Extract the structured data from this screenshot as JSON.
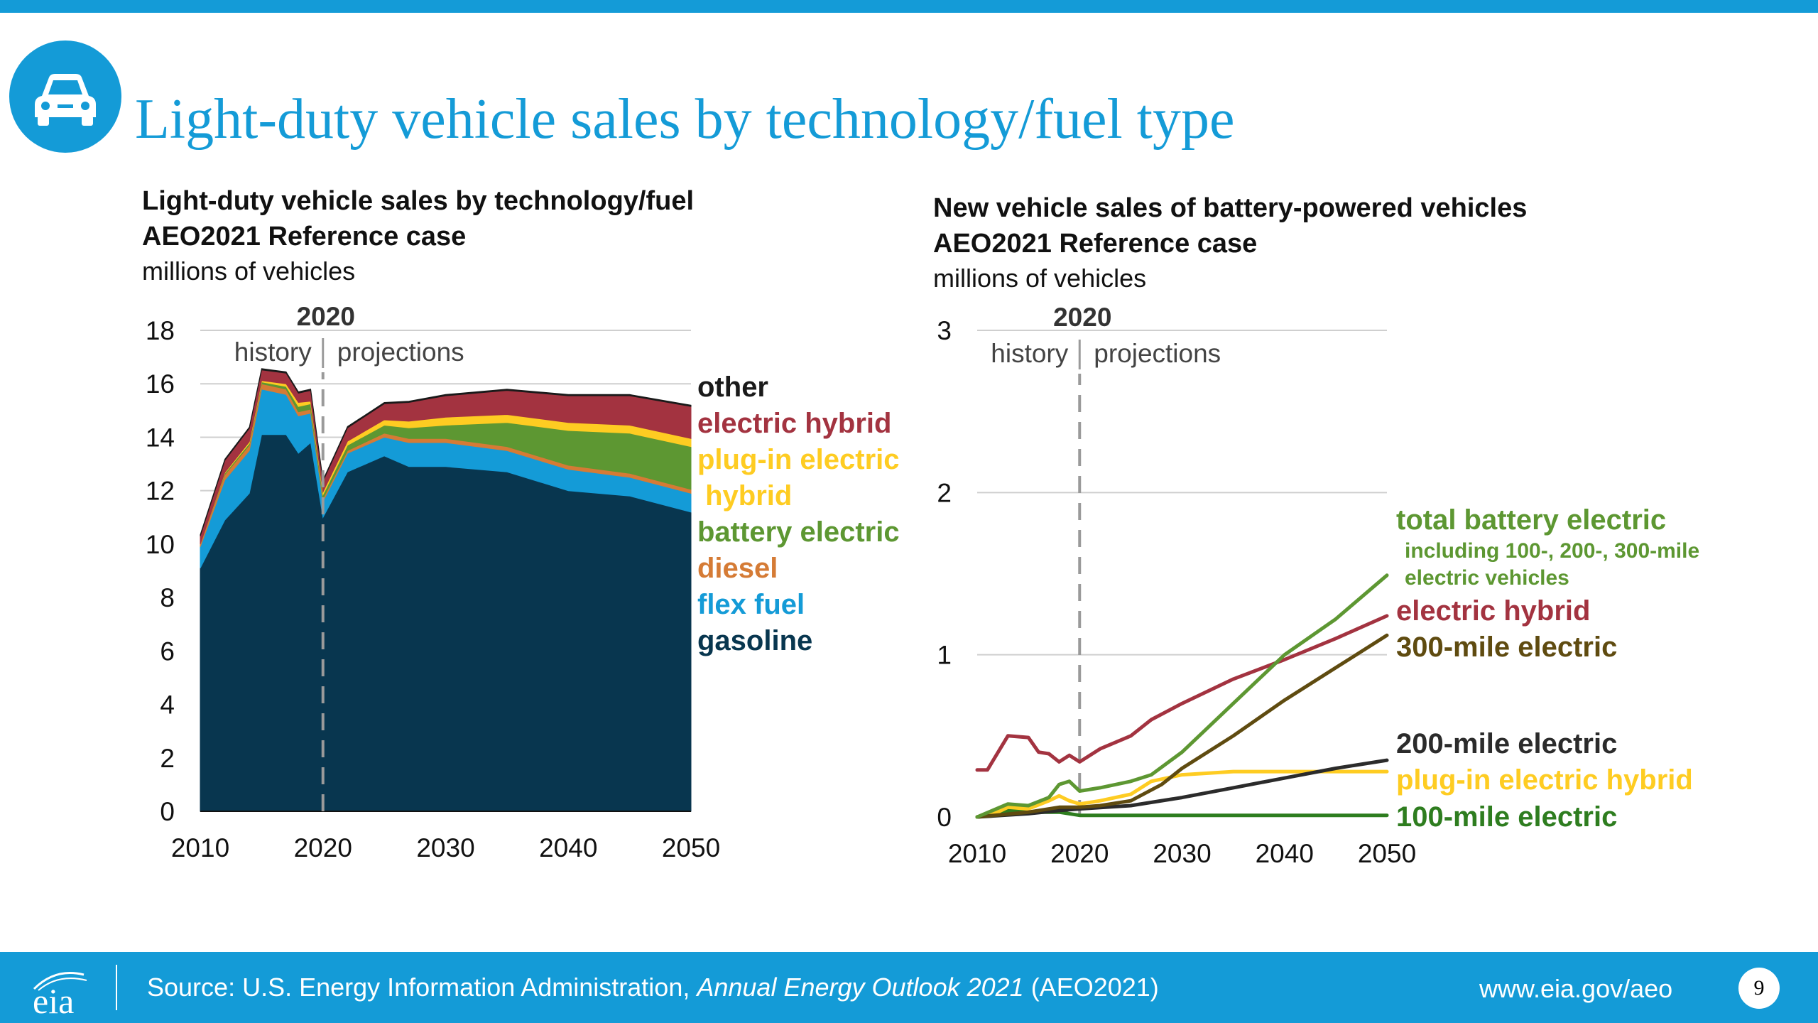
{
  "page": {
    "title": "Light-duty vehicle sales by technology/fuel type",
    "icon": "car-icon",
    "accent_color": "#149bd7"
  },
  "footer": {
    "source_prefix": "Source: U.S. Energy Information Administration, ",
    "source_italic": "Annual Energy Outlook 2021",
    "source_suffix": " (AEO2021)",
    "url": "www.eia.gov/aeo",
    "page_number": "9",
    "logo_text": "eia"
  },
  "chart_data": [
    {
      "id": "left",
      "type": "area",
      "stacked": true,
      "title": "Light-duty vehicle sales by technology/fuel",
      "subtitle": "AEO2021 Reference case",
      "ylabel": "millions of vehicles",
      "xlim": [
        2010,
        2050
      ],
      "ylim": [
        0,
        18
      ],
      "yticks": [
        0,
        2,
        4,
        6,
        8,
        10,
        12,
        14,
        16,
        18
      ],
      "xticks": [
        2010,
        2020,
        2030,
        2040,
        2050
      ],
      "grid": true,
      "divider": {
        "year": 2020,
        "label": "2020",
        "left_label": "history",
        "right_label": "projections"
      },
      "x": [
        2010,
        2012,
        2014,
        2015,
        2017,
        2018,
        2019,
        2020,
        2022,
        2025,
        2027,
        2030,
        2035,
        2040,
        2045,
        2050
      ],
      "series": [
        {
          "name": "gasoline",
          "color": "#08364f",
          "values": [
            9.1,
            10.9,
            11.9,
            14.1,
            14.1,
            13.4,
            13.8,
            11.0,
            12.7,
            13.3,
            12.9,
            12.9,
            12.7,
            12.0,
            11.8,
            11.2
          ]
        },
        {
          "name": "flex fuel",
          "color": "#149bd7",
          "values": [
            0.8,
            1.5,
            1.6,
            1.7,
            1.5,
            1.4,
            1.1,
            0.6,
            0.7,
            0.7,
            0.9,
            0.9,
            0.8,
            0.8,
            0.7,
            0.7
          ]
        },
        {
          "name": "diesel",
          "color": "#d57b35",
          "values": [
            0.1,
            0.2,
            0.2,
            0.2,
            0.2,
            0.15,
            0.15,
            0.1,
            0.1,
            0.15,
            0.15,
            0.15,
            0.15,
            0.15,
            0.15,
            0.15
          ]
        },
        {
          "name": "battery electric",
          "color": "#5d9732",
          "values": [
            0.0,
            0.05,
            0.07,
            0.07,
            0.1,
            0.2,
            0.2,
            0.15,
            0.2,
            0.3,
            0.4,
            0.5,
            0.9,
            1.3,
            1.5,
            1.6
          ]
        },
        {
          "name": "plug-in electric\n hybrid",
          "color": "#fecc22",
          "values": [
            0.0,
            0.03,
            0.06,
            0.05,
            0.1,
            0.15,
            0.1,
            0.1,
            0.15,
            0.2,
            0.25,
            0.3,
            0.3,
            0.3,
            0.3,
            0.3
          ]
        },
        {
          "name": "electric hybrid",
          "color": "#a33340",
          "values": [
            0.3,
            0.45,
            0.5,
            0.4,
            0.4,
            0.35,
            0.4,
            0.4,
            0.5,
            0.6,
            0.7,
            0.8,
            0.9,
            1.0,
            1.1,
            1.2
          ]
        },
        {
          "name": "other",
          "color": "#1a1a1a",
          "values": [
            0.05,
            0.05,
            0.05,
            0.05,
            0.05,
            0.05,
            0.05,
            0.05,
            0.05,
            0.05,
            0.05,
            0.05,
            0.05,
            0.05,
            0.05,
            0.05
          ]
        }
      ]
    },
    {
      "id": "right",
      "type": "line",
      "title": "New vehicle sales of battery-powered vehicles",
      "subtitle": "AEO2021 Reference case",
      "ylabel": "millions of vehicles",
      "xlim": [
        2010,
        2050
      ],
      "ylim": [
        0,
        3
      ],
      "yticks": [
        0,
        1,
        2,
        3
      ],
      "xticks": [
        2010,
        2020,
        2030,
        2040,
        2050
      ],
      "grid": true,
      "divider": {
        "year": 2020,
        "label": "2020",
        "left_label": "history",
        "right_label": "projections"
      },
      "series": [
        {
          "name": "total battery electric",
          "note": "including 100-, 200-, 300-mile\nelectric vehicles",
          "color": "#5d9732",
          "x": [
            2010,
            2013,
            2015,
            2017,
            2018,
            2019,
            2020,
            2022,
            2025,
            2027,
            2030,
            2035,
            2040,
            2045,
            2050
          ],
          "y": [
            0.0,
            0.08,
            0.07,
            0.12,
            0.2,
            0.22,
            0.16,
            0.18,
            0.22,
            0.26,
            0.4,
            0.7,
            1.0,
            1.22,
            1.49
          ]
        },
        {
          "name": "electric hybrid",
          "color": "#a33340",
          "x": [
            2010,
            2011,
            2013,
            2015,
            2016,
            2017,
            2018,
            2019,
            2020,
            2022,
            2025,
            2027,
            2030,
            2035,
            2040,
            2045,
            2050
          ],
          "y": [
            0.29,
            0.29,
            0.5,
            0.49,
            0.4,
            0.39,
            0.34,
            0.38,
            0.34,
            0.42,
            0.5,
            0.6,
            0.7,
            0.85,
            0.97,
            1.1,
            1.24
          ]
        },
        {
          "name": "300-mile electric",
          "color": "#5f4b10",
          "x": [
            2010,
            2015,
            2018,
            2020,
            2022,
            2025,
            2028,
            2030,
            2035,
            2040,
            2045,
            2050
          ],
          "y": [
            0.0,
            0.03,
            0.06,
            0.06,
            0.07,
            0.1,
            0.2,
            0.3,
            0.5,
            0.72,
            0.92,
            1.12
          ]
        },
        {
          "name": "200-mile electric",
          "color": "#2b2b2b",
          "x": [
            2010,
            2015,
            2018,
            2020,
            2025,
            2030,
            2035,
            2040,
            2045,
            2050
          ],
          "y": [
            0.0,
            0.02,
            0.04,
            0.05,
            0.07,
            0.12,
            0.18,
            0.24,
            0.3,
            0.35
          ]
        },
        {
          "name": "plug-in electric hybrid",
          "color": "#fecc22",
          "x": [
            2010,
            2012,
            2013,
            2015,
            2017,
            2018,
            2019,
            2020,
            2022,
            2025,
            2027,
            2030,
            2035,
            2040,
            2045,
            2050
          ],
          "y": [
            0.0,
            0.03,
            0.06,
            0.05,
            0.1,
            0.13,
            0.1,
            0.08,
            0.1,
            0.14,
            0.22,
            0.26,
            0.28,
            0.28,
            0.28,
            0.28
          ]
        },
        {
          "name": "100-mile electric",
          "color": "#2e7d1f",
          "x": [
            2010,
            2013,
            2015,
            2018,
            2020,
            2030,
            2040,
            2050
          ],
          "y": [
            0.0,
            0.04,
            0.03,
            0.03,
            0.01,
            0.01,
            0.01,
            0.01
          ]
        }
      ]
    }
  ]
}
